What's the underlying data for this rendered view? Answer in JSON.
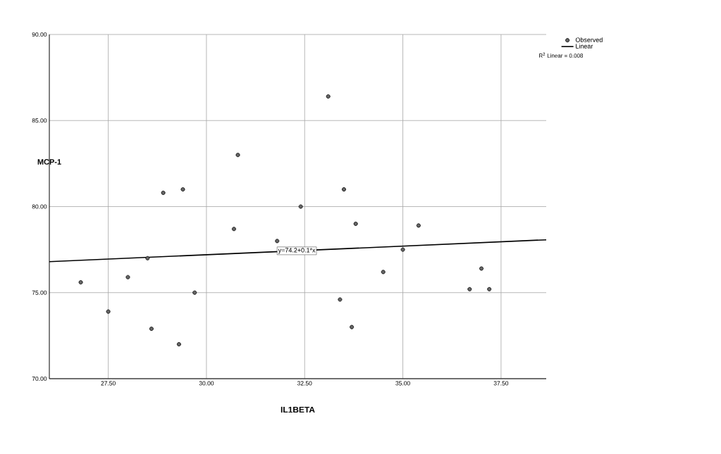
{
  "chart_data": {
    "type": "scatter",
    "xlabel": "IL1BETA",
    "ylabel": "MCP-1",
    "xlim": [
      26.0,
      38.65
    ],
    "ylim": [
      70,
      90
    ],
    "xticks": [
      {
        "value": 27.5,
        "label": "27.50"
      },
      {
        "value": 30,
        "label": "30.00"
      },
      {
        "value": 32.5,
        "label": "32.50"
      },
      {
        "value": 35,
        "label": "35.00"
      },
      {
        "value": 37.5,
        "label": "37.50"
      }
    ],
    "yticks": [
      {
        "value": 70,
        "label": "70.00"
      },
      {
        "value": 75,
        "label": "75.00"
      },
      {
        "value": 80,
        "label": "80.00"
      },
      {
        "value": 85,
        "label": "85.00"
      },
      {
        "value": 90,
        "label": "90.00"
      }
    ],
    "grid": true,
    "legend": "top right",
    "series": [
      {
        "name": "Observed",
        "marker": "circle",
        "color": "#666666",
        "x": [
          26.8,
          27.5,
          28.0,
          28.5,
          28.6,
          28.9,
          29.3,
          29.4,
          29.7,
          30.7,
          30.8,
          31.8,
          32.4,
          33.1,
          33.4,
          33.5,
          33.7,
          33.8,
          34.5,
          35.0,
          35.4,
          36.7,
          37.0,
          37.2
        ],
        "values": [
          75.6,
          73.9,
          75.9,
          77.0,
          72.9,
          80.8,
          72.0,
          81.0,
          75.0,
          78.7,
          83.0,
          78.0,
          80.0,
          86.4,
          74.6,
          81.0,
          73.0,
          79.0,
          76.2,
          77.5,
          78.9,
          75.2,
          76.4,
          75.2
        ]
      },
      {
        "name": "Linear",
        "type": "line",
        "marker": "none",
        "color": "#000000",
        "line_style": "solid",
        "x": [
          26.0,
          38.65
        ],
        "values": [
          76.8,
          78.07
        ]
      }
    ],
    "annotations": [
      {
        "text": "y=74.2+0.1*x",
        "x": 32.3,
        "y": 77.43
      },
      "R$^{2}$ Linear = 0.008"
    ]
  }
}
